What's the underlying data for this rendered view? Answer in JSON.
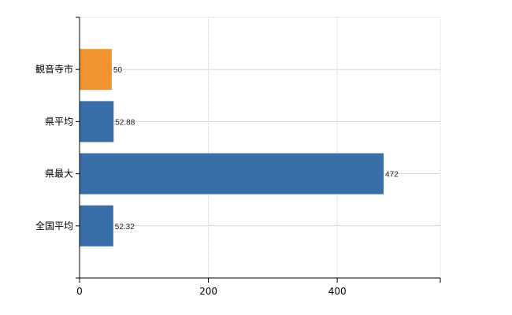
{
  "chart_data": {
    "type": "bar",
    "orientation": "horizontal",
    "categories": [
      "観音寺市",
      "県平均",
      "県最大",
      "全国平均"
    ],
    "values": [
      50,
      52.88,
      472,
      52.32
    ],
    "data_labels": [
      "50",
      "52.88",
      "472",
      "52.32"
    ],
    "colors": [
      "#f0922f",
      "#3a6ea8",
      "#3a6ea8",
      "#3a6ea8"
    ],
    "xlim": [
      0,
      560
    ],
    "xticks": [
      0,
      200,
      400
    ],
    "xtick_labels": [
      "0",
      "200",
      "400"
    ],
    "grid": true,
    "title": "",
    "xlabel": "",
    "ylabel": ""
  }
}
